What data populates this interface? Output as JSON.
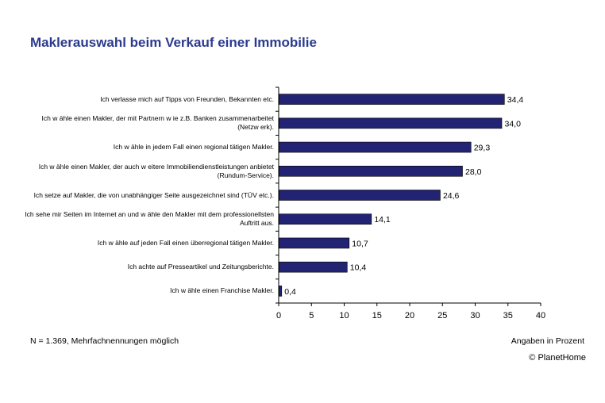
{
  "chart_data": {
    "type": "bar",
    "orientation": "horizontal",
    "title": "Maklerauswahl beim Verkauf einer Immobilie",
    "categories": [
      "Ich verlasse mich auf Tipps von Freunden, Bekannten etc.",
      "Ich w ähle einen Makler, der mit Partnern w ie z.B. Banken zusammenarbeitet (Netzw erk).",
      "Ich w ähle in jedem Fall einen regional tätigen Makler.",
      "Ich w ähle einen Makler, der auch w eitere Immobiliendienstleistungen anbietet (Rundum-Service).",
      "Ich setze auf Makler, die von unabhängiger Seite ausgezeichnet sind (TÜV etc.).",
      "Ich sehe mir Seiten im Internet an und w ähle den Makler mit dem professionellsten Auftritt aus.",
      "Ich w ähle auf jeden Fall einen überregional tätigen Makler.",
      "Ich achte auf Presseartikel und Zeitungsberichte.",
      "Ich w ähle einen Franchise Makler."
    ],
    "values": [
      34.4,
      34.0,
      29.3,
      28.0,
      24.6,
      14.1,
      10.7,
      10.4,
      0.4
    ],
    "value_labels": [
      "34,4",
      "34,0",
      "29,3",
      "28,0",
      "24,6",
      "14,1",
      "10,7",
      "10,4",
      "0,4"
    ],
    "xlim": [
      0,
      40
    ],
    "xticks": [
      0,
      5,
      10,
      15,
      20,
      25,
      30,
      35,
      40
    ],
    "bar_color": "#232374",
    "grid": false
  },
  "footnote": "N = 1.369, Mehrfachnennungen möglich",
  "unit_note": "Angaben in Prozent",
  "copyright": "© PlanetHome",
  "colors": {
    "title": "#2b3a8f",
    "bars": "#232374"
  }
}
